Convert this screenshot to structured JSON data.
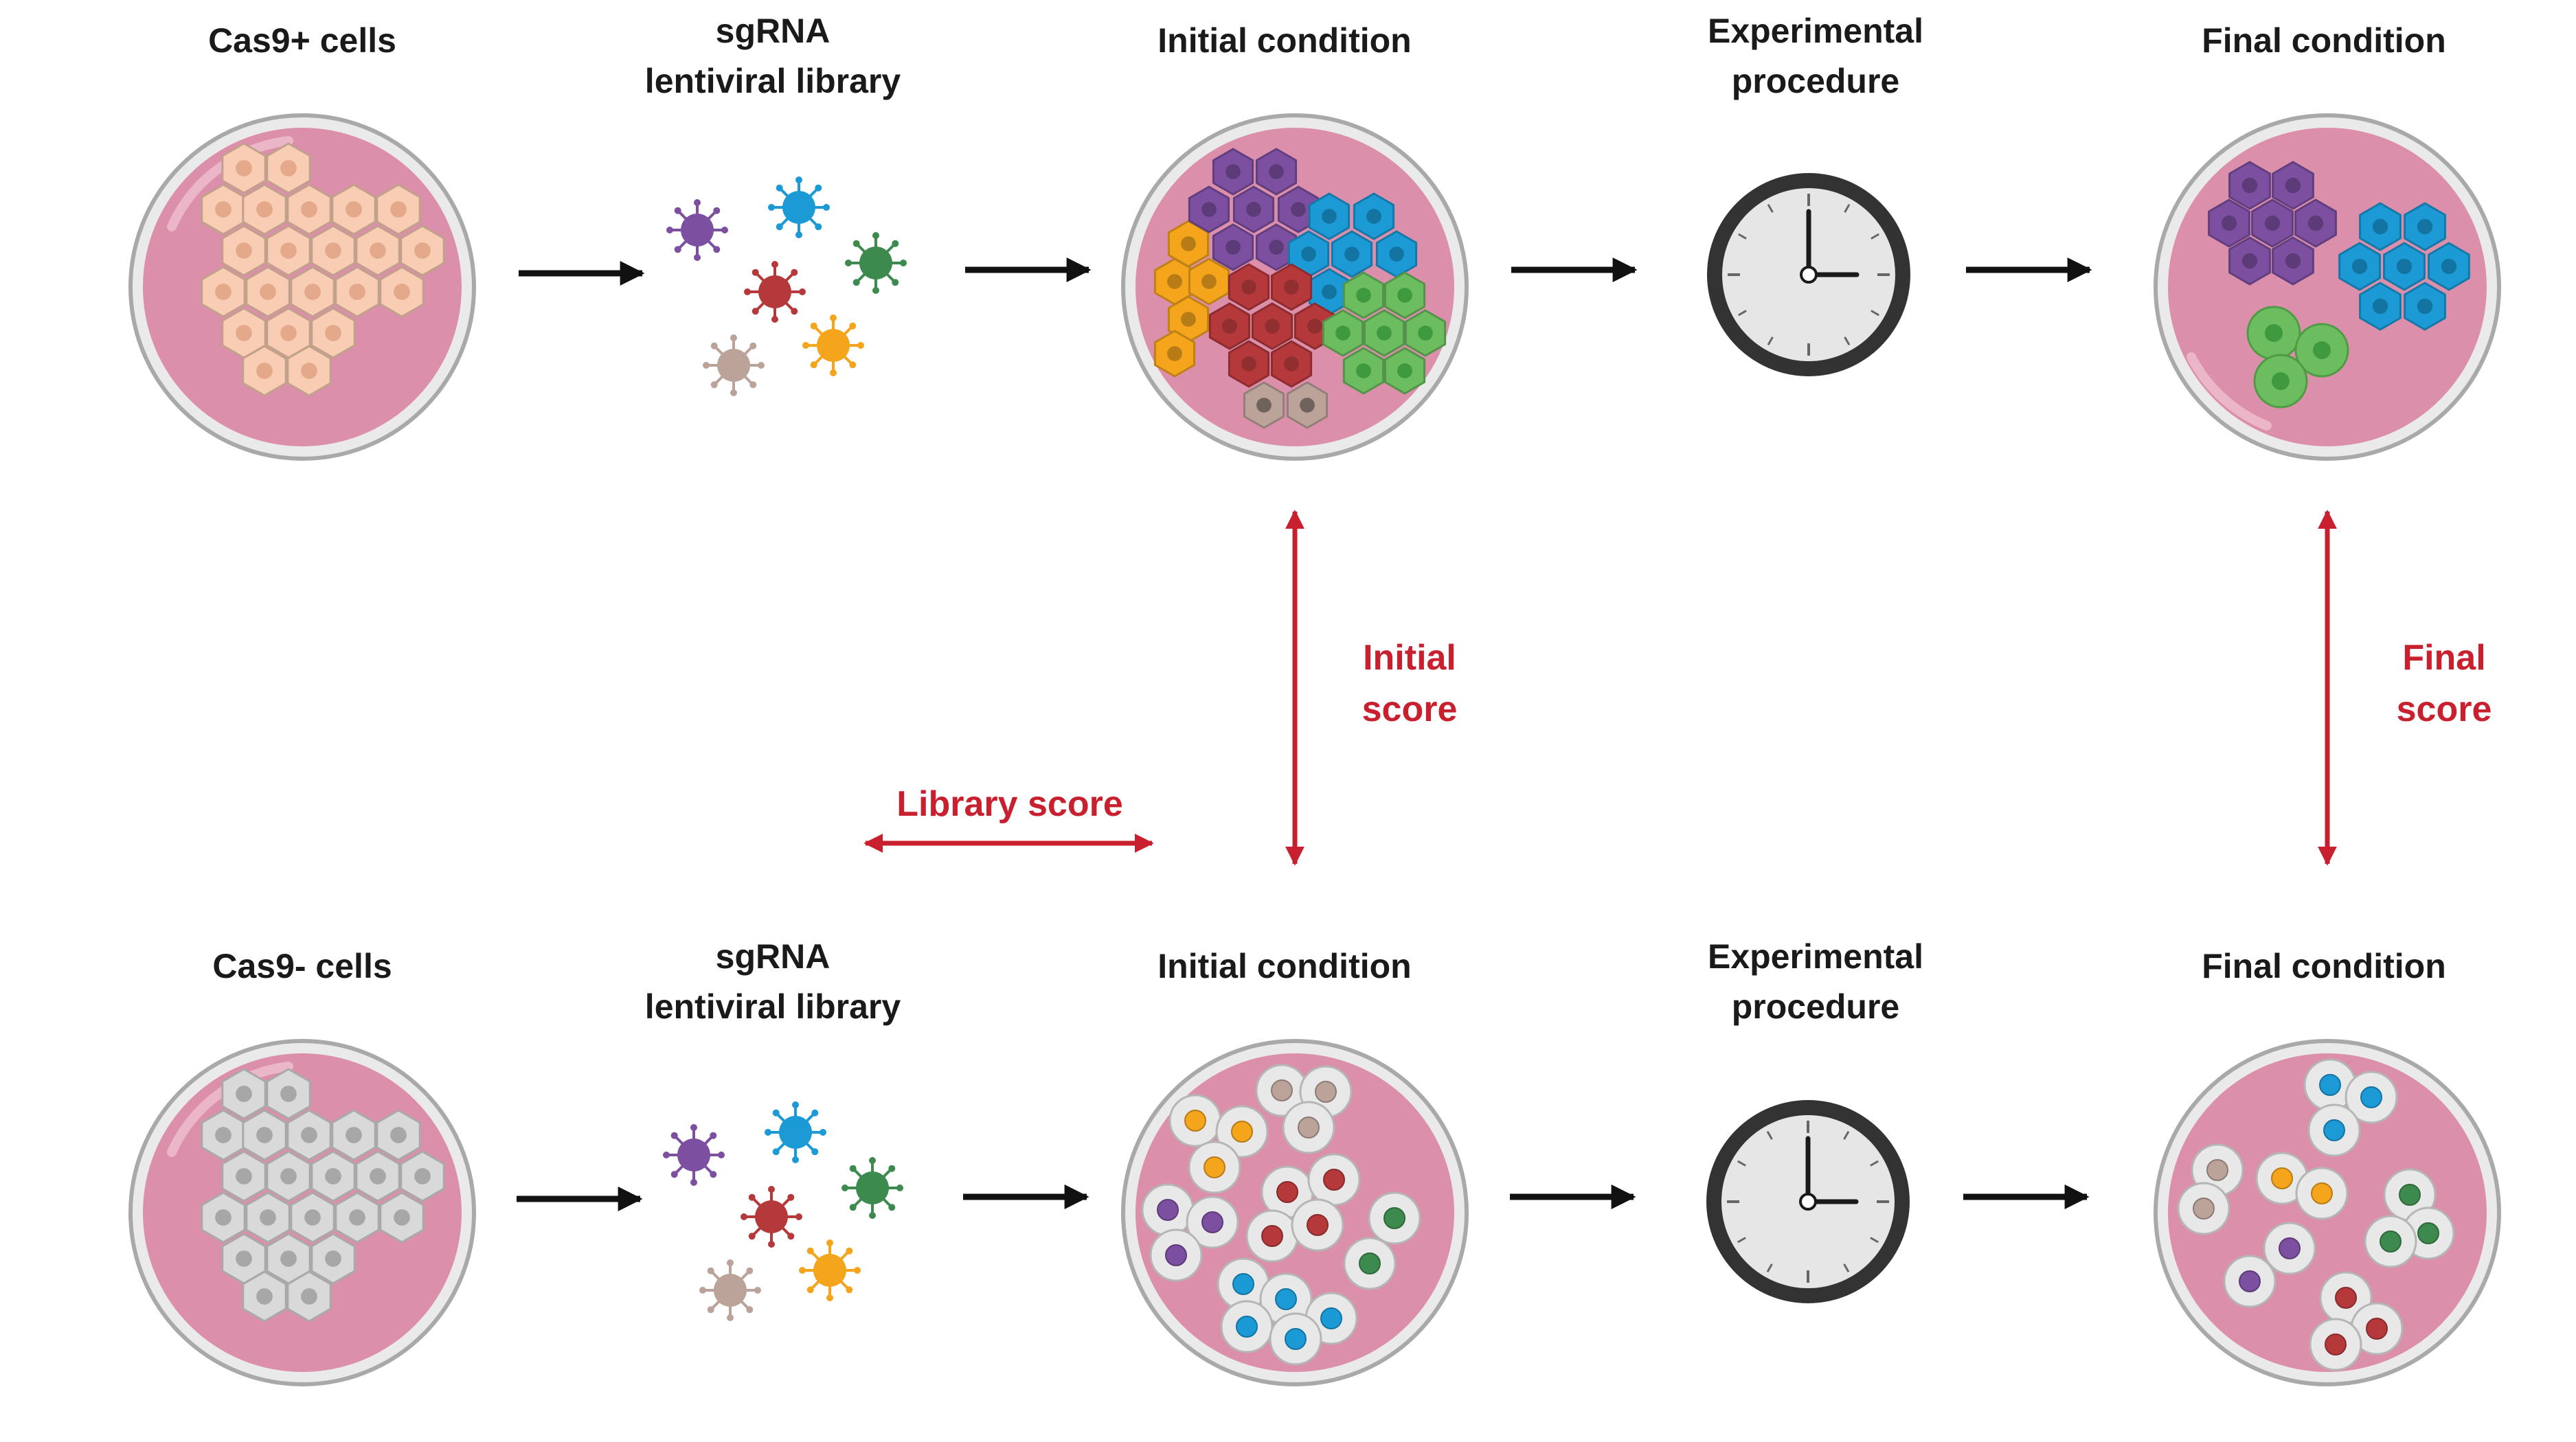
{
  "colors": {
    "background": "#ffffff",
    "dish_fill": "#dc8fab",
    "dish_rim": "#b9b9b9",
    "arrow_black": "#111111",
    "arrow_red": "#c8202e",
    "text_black": "#1a1a1a",
    "text_red": "#c8202e",
    "cas9_pos_cell": "#f8cdb3",
    "cas9_pos_nucleus": "#e4a88a",
    "cas9_neg_cell": "#d9d9d9",
    "cas9_neg_nucleus": "#a7a7a7",
    "sg_purple": "#7c4fa0",
    "sg_blue": "#1b9ad6",
    "sg_green": "#3d8a4f",
    "sg_red": "#b5393b",
    "sg_orange": "#f4a51c",
    "sg_tan": "#bba39a",
    "clock_ring": "#333333",
    "clock_face": "#e6e6e6"
  },
  "rows": [
    {
      "id": "top",
      "cells_label": "Cas9+ cells",
      "library_label_line1": "sgRNA",
      "library_label_line2": "lentiviral library",
      "initial_label": "Initial condition",
      "experimental_label_line1": "Experimental",
      "experimental_label_line2": "procedure",
      "final_label": "Final condition"
    },
    {
      "id": "bottom",
      "cells_label": "Cas9- cells",
      "library_label_line1": "sgRNA",
      "library_label_line2": "lentiviral library",
      "initial_label": "Initial condition",
      "experimental_label_line1": "Experimental",
      "experimental_label_line2": "procedure",
      "final_label": "Final condition"
    }
  ],
  "scores": {
    "initial_line1": "Initial",
    "initial_line2": "score",
    "final_line1": "Final",
    "final_line2": "score",
    "library": "Library score"
  }
}
